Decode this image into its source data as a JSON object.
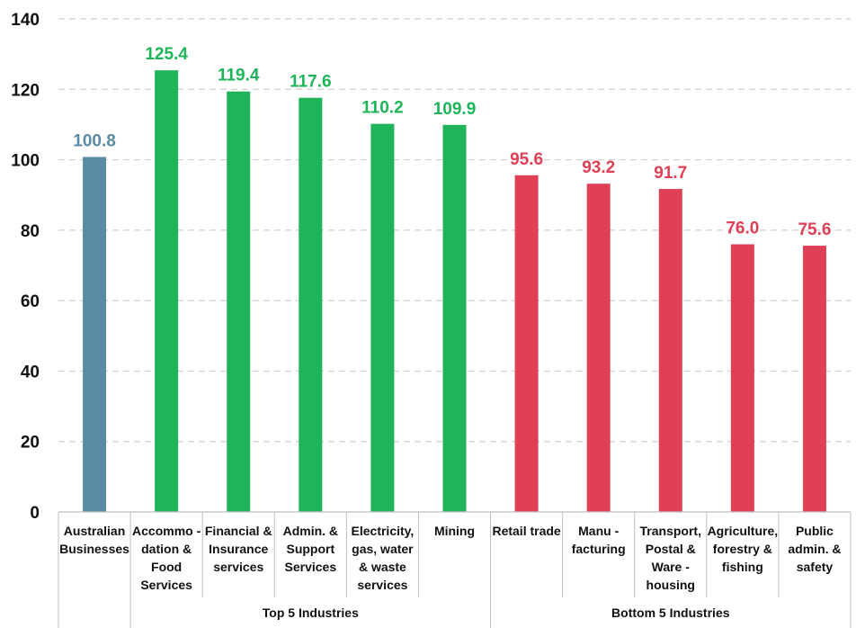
{
  "chart_data": {
    "type": "bar",
    "title": "",
    "xlabel": "",
    "ylabel": "",
    "ylim": [
      0,
      140
    ],
    "yticks": [
      0,
      20,
      40,
      60,
      80,
      100,
      120,
      140
    ],
    "grid": true,
    "categories": [
      [
        "Australian",
        "Businesses"
      ],
      [
        "Accommo -",
        "dation &",
        "Food",
        "Services"
      ],
      [
        "Financial &",
        "Insurance",
        "services"
      ],
      [
        "Admin. &",
        "Support",
        "Services"
      ],
      [
        "Electricity,",
        "gas, water",
        "& waste",
        "services"
      ],
      [
        "Mining"
      ],
      [
        "Retail trade"
      ],
      [
        "Manu -",
        "facturing"
      ],
      [
        "Transport,",
        "Postal &",
        "Ware -",
        "housing"
      ],
      [
        "Agriculture,",
        "forestry &",
        "fishing"
      ],
      [
        "Public",
        "admin. &",
        "safety"
      ]
    ],
    "values": [
      100.8,
      125.4,
      119.4,
      117.6,
      110.2,
      109.9,
      95.6,
      93.2,
      91.7,
      76.0,
      75.6
    ],
    "value_labels": [
      "100.8",
      "125.4",
      "119.4",
      "117.6",
      "110.2",
      "109.9",
      "95.6",
      "93.2",
      "91.7",
      "76.0",
      "75.6"
    ],
    "bar_colors": [
      "#5b8ba3",
      "#1fb45a",
      "#1fb45a",
      "#1fb45a",
      "#1fb45a",
      "#1fb45a",
      "#e04055",
      "#e04055",
      "#e04055",
      "#e04055",
      "#e04055"
    ],
    "groups": [
      {
        "label": "",
        "from": 0,
        "to": 0
      },
      {
        "label": "Top 5 Industries",
        "from": 1,
        "to": 5
      },
      {
        "label": "Bottom 5 Industries",
        "from": 6,
        "to": 10
      }
    ]
  }
}
